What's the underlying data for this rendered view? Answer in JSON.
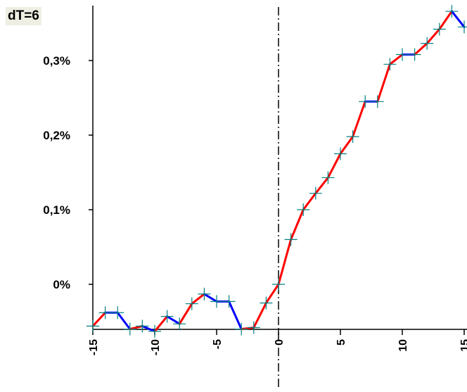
{
  "chart_data": {
    "type": "line",
    "title": "dT=6",
    "xlabel": "",
    "ylabel": "",
    "xlim": [
      -15,
      15
    ],
    "ylim": [
      -0.056,
      0.365
    ],
    "x_ticks": [
      -15,
      -10,
      -5,
      0,
      5,
      10,
      15
    ],
    "x_tick_labels": [
      "-15",
      "-10",
      "-5",
      "0",
      "5",
      "10",
      "15"
    ],
    "y_ticks": [
      0,
      0.1,
      0.2,
      0.3
    ],
    "y_tick_labels": [
      "0%",
      "0,1%",
      "0,2%",
      "0,3%"
    ],
    "vertical_marker_x": 0,
    "up_color": "#ff0000",
    "down_color": "#0000ff",
    "marker": "+",
    "marker_color": "#008080",
    "points": {
      "x": [
        -15,
        -14,
        -13,
        -12,
        -11,
        -10,
        -9,
        -8,
        -7,
        -6,
        -5,
        -4,
        -3,
        -2,
        -1,
        0,
        1,
        2,
        3,
        4,
        5,
        6,
        7,
        8,
        9,
        10,
        11,
        12,
        13,
        14,
        15
      ],
      "y": [
        -0.056,
        -0.038,
        -0.038,
        -0.06,
        -0.056,
        -0.063,
        -0.043,
        -0.053,
        -0.026,
        -0.013,
        -0.023,
        -0.023,
        -0.06,
        -0.058,
        -0.025,
        0.0,
        0.06,
        0.1,
        0.122,
        0.143,
        0.175,
        0.198,
        0.245,
        0.245,
        0.295,
        0.308,
        0.308,
        0.323,
        0.342,
        0.366,
        0.345
      ]
    }
  }
}
